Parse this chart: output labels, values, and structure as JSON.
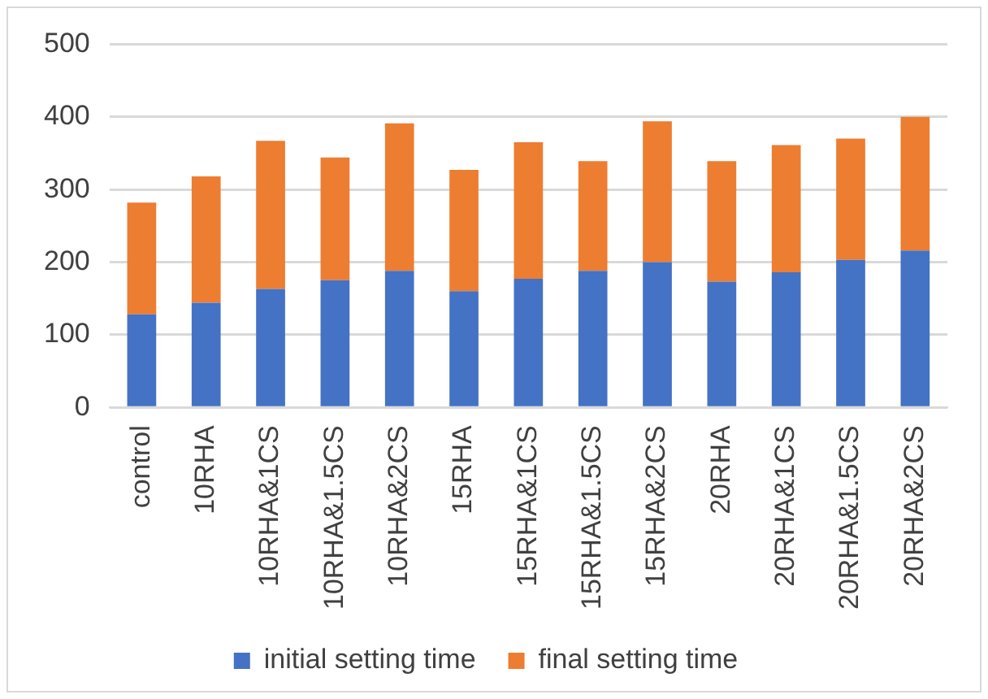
{
  "chart_data": {
    "type": "bar",
    "stacked": true,
    "categories": [
      "control",
      "10RHA",
      "10RHA&1CS",
      "10RHA&1.5CS",
      "10RHA&2CS",
      "15RHA",
      "15RHA&1CS",
      "15RHA&1.5CS",
      "15RHA&2CS",
      "20RHA",
      "20RHA&1CS",
      "20RHA&1.5CS",
      "20RHA&2CS"
    ],
    "series": [
      {
        "name": "initial setting time",
        "color": "#4472c4",
        "values": [
          128,
          144,
          163,
          175,
          188,
          160,
          177,
          188,
          200,
          173,
          186,
          203,
          216
        ]
      },
      {
        "name": "final setting time",
        "color": "#ed7d31",
        "values": [
          154,
          174,
          204,
          169,
          203,
          167,
          188,
          151,
          194,
          166,
          175,
          167,
          184
        ]
      }
    ],
    "ylim": [
      0,
      500
    ],
    "yticks": [
      0,
      100,
      200,
      300,
      400,
      500
    ],
    "grid": "y",
    "legend": "bottom"
  }
}
